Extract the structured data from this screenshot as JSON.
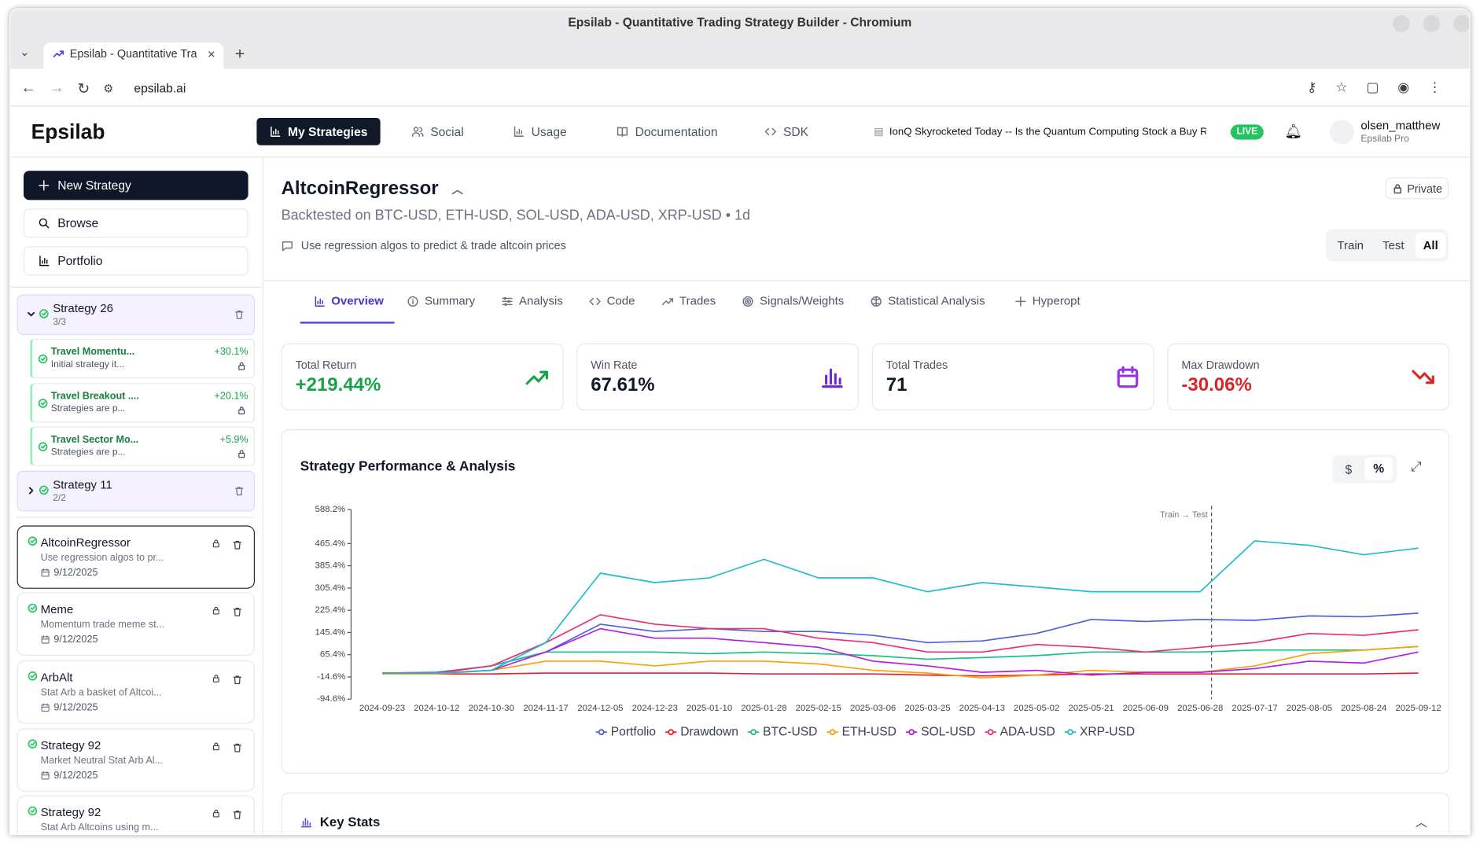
{
  "browser": {
    "window_title": "Epsilab - Quantitative Trading Strategy Builder - Chromium",
    "tab_title": "Epsilab - Quantitative Tra",
    "url": "epsilab.ai"
  },
  "nav": {
    "logo": "Epsilab",
    "items": [
      "My Strategies",
      "Social",
      "Usage",
      "Documentation",
      "SDK"
    ],
    "news": "IonQ Skyrocketed Today -- Is the Quantum Computing Stock a Buy Rig",
    "live": "LIVE",
    "user": {
      "name": "olsen_matthew",
      "plan": "Epsilab Pro"
    }
  },
  "sidebar": {
    "buttons": [
      "New Strategy",
      "Browse",
      "Portfolio"
    ],
    "groups": [
      {
        "name": "Strategy 26",
        "count": "3/3",
        "children": [
          {
            "name": "Travel Momentu...",
            "desc": "Initial strategy it...",
            "return": "+30.1%"
          },
          {
            "name": "Travel Breakout ....",
            "desc": "Strategies are p...",
            "return": "+20.1%"
          },
          {
            "name": "Travel Sector Mo...",
            "desc": "Strategies are p...",
            "return": "+5.9%"
          }
        ]
      },
      {
        "name": "Strategy 11",
        "count": "2/2",
        "children": []
      }
    ],
    "strategies": [
      {
        "name": "AltcoinRegressor",
        "desc": "Use regression algos to pr...",
        "date": "9/12/2025"
      },
      {
        "name": "Meme",
        "desc": "Momentum trade meme st...",
        "date": "9/12/2025"
      },
      {
        "name": "ArbAlt",
        "desc": "Stat Arb a basket of Altcoi...",
        "date": "9/12/2025"
      },
      {
        "name": "Strategy 92",
        "desc": "Market Neutral Stat Arb Al...",
        "date": "9/12/2025"
      },
      {
        "name": "Strategy 92",
        "desc": "Stat Arb Altcoins using m..."
      }
    ]
  },
  "header": {
    "title": "AltcoinRegressor",
    "subtitle": "Backtested on BTC-USD, ETH-USD, SOL-USD, ADA-USD, XRP-USD • 1d",
    "description": "Use regression algos to predict & trade altcoin prices",
    "visibility": "Private",
    "periods": [
      "Train",
      "Test",
      "All"
    ]
  },
  "tabs": [
    "Overview",
    "Summary",
    "Analysis",
    "Code",
    "Trades",
    "Signals/Weights",
    "Statistical Analysis",
    "Hyperopt"
  ],
  "stats": [
    {
      "label": "Total Return",
      "value": "+219.44%"
    },
    {
      "label": "Win Rate",
      "value": "67.61%"
    },
    {
      "label": "Total Trades",
      "value": "71"
    },
    {
      "label": "Max Drawdown",
      "value": "-30.06%"
    }
  ],
  "units_toggle": [
    "$",
    "%"
  ],
  "chart_data": {
    "type": "line",
    "title": "Strategy Performance & Analysis",
    "x": [
      "2024-09-23",
      "2024-10-12",
      "2024-10-30",
      "2024-11-17",
      "2024-12-05",
      "2024-12-23",
      "2025-01-10",
      "2025-01-28",
      "2025-02-15",
      "2025-03-06",
      "2025-03-25",
      "2025-04-13",
      "2025-05-02",
      "2025-05-21",
      "2025-06-09",
      "2025-06-28",
      "2025-07-17",
      "2025-08-05",
      "2025-08-24",
      "2025-09-12"
    ],
    "series": [
      {
        "name": "Portfolio",
        "color": "#4f5fe0",
        "values": [
          -1,
          2,
          25,
          75,
          175,
          149,
          159,
          149,
          149,
          135,
          109,
          115,
          142,
          192,
          185,
          192,
          189,
          205,
          202,
          215
        ]
      },
      {
        "name": "Drawdown",
        "color": "#ee1d2b",
        "values": [
          -1,
          -4,
          -4,
          -1,
          -1,
          -1,
          -1,
          -4,
          -4,
          -4,
          -8,
          -11,
          -8,
          -4,
          -4,
          -4,
          -4,
          -4,
          -4,
          -1
        ]
      },
      {
        "name": "BTC-USD",
        "color": "#19c08a",
        "values": [
          -1,
          -1,
          25,
          75,
          75,
          75,
          69,
          75,
          69,
          62,
          49,
          55,
          62,
          75,
          75,
          75,
          82,
          82,
          82,
          95
        ]
      },
      {
        "name": "ETH-USD",
        "color": "#f5a20c",
        "values": [
          -4,
          -4,
          9,
          42,
          42,
          25,
          42,
          42,
          32,
          9,
          -1,
          -18,
          -8,
          9,
          2,
          2,
          25,
          69,
          82,
          95
        ]
      },
      {
        "name": "SOL-USD",
        "color": "#b11ee6",
        "values": [
          -1,
          -1,
          9,
          75,
          159,
          125,
          125,
          109,
          92,
          42,
          25,
          2,
          9,
          -8,
          2,
          2,
          15,
          42,
          35,
          75
        ]
      },
      {
        "name": "ADA-USD",
        "color": "#ea2d7a",
        "values": [
          -1,
          -1,
          25,
          109,
          209,
          175,
          159,
          159,
          125,
          109,
          75,
          75,
          102,
          92,
          75,
          92,
          109,
          142,
          135,
          155
        ]
      },
      {
        "name": "XRP-USD",
        "color": "#1fbccb",
        "values": [
          -1,
          -1,
          9,
          109,
          359,
          325,
          342,
          409,
          342,
          342,
          292,
          325,
          309,
          292,
          292,
          292,
          475,
          459,
          425,
          449
        ]
      }
    ],
    "ylim": [
      -94.6,
      588.2
    ],
    "yticks": [
      {
        "value": -94.6,
        "label": "-94.6%"
      },
      {
        "value": -14.6,
        "label": "-14.6%"
      },
      {
        "value": 65.4,
        "label": "65.4%"
      },
      {
        "value": 145.4,
        "label": "145.4%"
      },
      {
        "value": 225.4,
        "label": "225.4%"
      },
      {
        "value": 305.4,
        "label": "305.4%"
      },
      {
        "value": 385.4,
        "label": "385.4%"
      },
      {
        "value": 465.4,
        "label": "465.4%"
      },
      {
        "value": 588.2,
        "label": "588.2%"
      }
    ],
    "grid": false,
    "annotations": [
      {
        "text": "Train → Test",
        "x": "2025-06-28"
      }
    ]
  },
  "key_stats": "Key Stats"
}
